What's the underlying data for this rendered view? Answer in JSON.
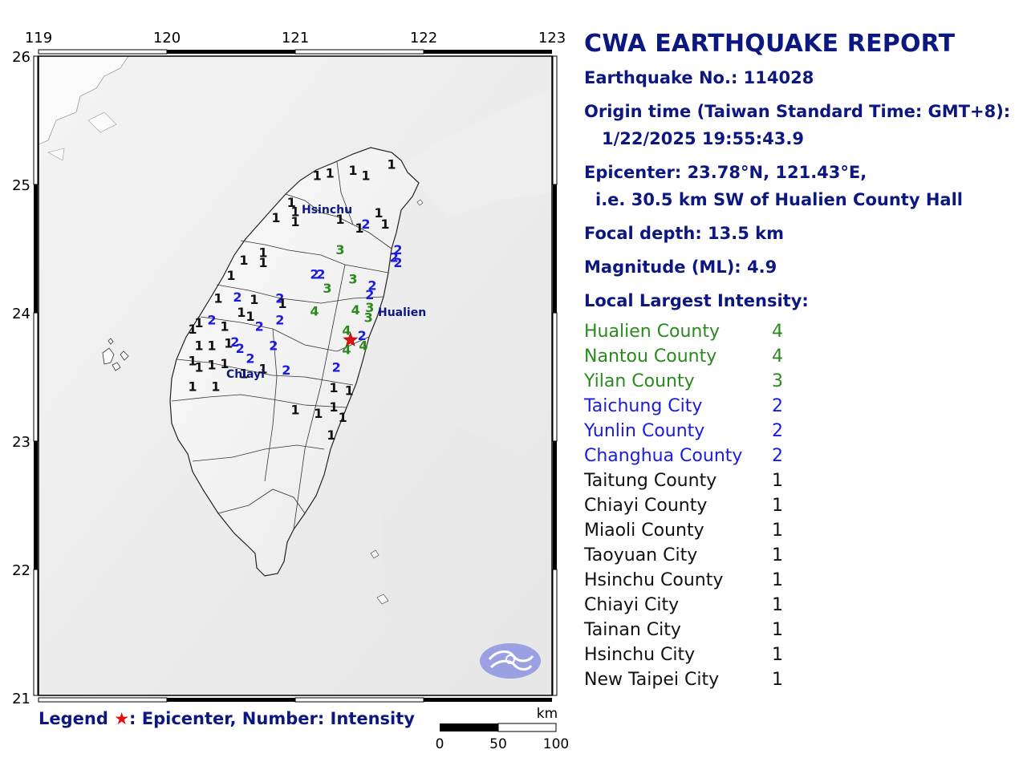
{
  "report": {
    "title": "CWA EARTHQUAKE REPORT",
    "earthquake_no": "Earthquake No.: 114028",
    "origin_label": "Origin time (Taiwan Standard Time: GMT+8):",
    "origin_time": "1/22/2025 19:55:43.9",
    "epicenter": "Epicenter: 23.78°N, 121.43°E,",
    "epicenter_desc": "i.e. 30.5 km SW of Hualien County Hall",
    "depth": "Focal depth: 13.5 km",
    "magnitude": "Magnitude (ML): 4.9",
    "intensity_heading": "Local Largest Intensity:",
    "intensities": [
      {
        "name": "Hualien County",
        "value": "4",
        "color": "#2a8a1e"
      },
      {
        "name": "Nantou County",
        "value": "4",
        "color": "#2a8a1e"
      },
      {
        "name": "Yilan County",
        "value": "3",
        "color": "#2a8a1e"
      },
      {
        "name": "Taichung City",
        "value": "2",
        "color": "#1a1ae0"
      },
      {
        "name": "Yunlin County",
        "value": "2",
        "color": "#1a1ae0"
      },
      {
        "name": "Changhua County",
        "value": "2",
        "color": "#1a1ae0"
      },
      {
        "name": "Taitung County",
        "value": "1",
        "color": "#111111"
      },
      {
        "name": "Chiayi County",
        "value": "1",
        "color": "#111111"
      },
      {
        "name": "Miaoli County",
        "value": "1",
        "color": "#111111"
      },
      {
        "name": "Taoyuan City",
        "value": "1",
        "color": "#111111"
      },
      {
        "name": "Hsinchu County",
        "value": "1",
        "color": "#111111"
      },
      {
        "name": "Chiayi City",
        "value": "1",
        "color": "#111111"
      },
      {
        "name": "Tainan City",
        "value": "1",
        "color": "#111111"
      },
      {
        "name": "Hsinchu City",
        "value": "1",
        "color": "#111111"
      },
      {
        "name": "New Taipei City",
        "value": "1",
        "color": "#111111"
      }
    ]
  },
  "map": {
    "lon_ticks": [
      "119",
      "120",
      "121",
      "122",
      "123"
    ],
    "lat_ticks": [
      "26",
      "25",
      "24",
      "23",
      "22",
      "21"
    ],
    "cities": [
      "Hsinchu",
      "Hualien",
      "Chiayi"
    ],
    "epicenter_icon": "red-star-icon",
    "logo_icon": "cwa-logo-icon",
    "scale_unit": "km",
    "scale_labels": [
      "0",
      "50",
      "100"
    ],
    "station_colors": {
      "1": "#111111",
      "2": "#1a1ae0",
      "3": "#2a8a1e",
      "4": "#2a8a1e"
    },
    "stations": [
      {
        "v": "1",
        "lon": 121.17,
        "lat": 25.03
      },
      {
        "v": "1",
        "lon": 121.27,
        "lat": 25.05
      },
      {
        "v": "1",
        "lon": 121.45,
        "lat": 25.07
      },
      {
        "v": "1",
        "lon": 121.55,
        "lat": 25.03
      },
      {
        "v": "1",
        "lon": 121.75,
        "lat": 25.12
      },
      {
        "v": "1",
        "lon": 120.97,
        "lat": 24.82
      },
      {
        "v": "1",
        "lon": 121.0,
        "lat": 24.75
      },
      {
        "v": "1",
        "lon": 120.85,
        "lat": 24.7
      },
      {
        "v": "1",
        "lon": 121.0,
        "lat": 24.67
      },
      {
        "v": "1",
        "lon": 121.35,
        "lat": 24.69
      },
      {
        "v": "1",
        "lon": 121.65,
        "lat": 24.74
      },
      {
        "v": "1",
        "lon": 121.7,
        "lat": 24.65
      },
      {
        "v": "1",
        "lon": 121.5,
        "lat": 24.62
      },
      {
        "v": "2",
        "lon": 121.55,
        "lat": 24.65
      },
      {
        "v": "1",
        "lon": 120.75,
        "lat": 24.43
      },
      {
        "v": "1",
        "lon": 120.6,
        "lat": 24.37
      },
      {
        "v": "1",
        "lon": 120.75,
        "lat": 24.35
      },
      {
        "v": "1",
        "lon": 120.5,
        "lat": 24.25
      },
      {
        "v": "3",
        "lon": 121.35,
        "lat": 24.45
      },
      {
        "v": "2",
        "lon": 121.8,
        "lat": 24.45
      },
      {
        "v": "2",
        "lon": 121.77,
        "lat": 24.39
      },
      {
        "v": "2",
        "lon": 121.8,
        "lat": 24.35
      },
      {
        "v": "2",
        "lon": 121.15,
        "lat": 24.26
      },
      {
        "v": "2",
        "lon": 121.2,
        "lat": 24.26
      },
      {
        "v": "3",
        "lon": 121.45,
        "lat": 24.22
      },
      {
        "v": "3",
        "lon": 121.25,
        "lat": 24.15
      },
      {
        "v": "2",
        "lon": 121.6,
        "lat": 24.17
      },
      {
        "v": "2",
        "lon": 121.58,
        "lat": 24.1
      },
      {
        "v": "1",
        "lon": 120.4,
        "lat": 24.07
      },
      {
        "v": "2",
        "lon": 120.55,
        "lat": 24.08
      },
      {
        "v": "1",
        "lon": 120.68,
        "lat": 24.06
      },
      {
        "v": "2",
        "lon": 120.88,
        "lat": 24.07
      },
      {
        "v": "1",
        "lon": 120.9,
        "lat": 24.03
      },
      {
        "v": "4",
        "lon": 121.15,
        "lat": 23.97
      },
      {
        "v": "4",
        "lon": 121.47,
        "lat": 23.98
      },
      {
        "v": "3",
        "lon": 121.58,
        "lat": 24.0
      },
      {
        "v": "3",
        "lon": 121.57,
        "lat": 23.92
      },
      {
        "v": "2",
        "lon": 120.35,
        "lat": 23.9
      },
      {
        "v": "1",
        "lon": 120.25,
        "lat": 23.88
      },
      {
        "v": "1",
        "lon": 120.45,
        "lat": 23.85
      },
      {
        "v": "1",
        "lon": 120.58,
        "lat": 23.96
      },
      {
        "v": "1",
        "lon": 120.65,
        "lat": 23.93
      },
      {
        "v": "2",
        "lon": 120.72,
        "lat": 23.85
      },
      {
        "v": "2",
        "lon": 120.88,
        "lat": 23.9
      },
      {
        "v": "1",
        "lon": 120.2,
        "lat": 23.83
      },
      {
        "v": "1",
        "lon": 120.25,
        "lat": 23.7
      },
      {
        "v": "1",
        "lon": 120.35,
        "lat": 23.7
      },
      {
        "v": "1",
        "lon": 120.48,
        "lat": 23.72
      },
      {
        "v": "2",
        "lon": 120.53,
        "lat": 23.73
      },
      {
        "v": "2",
        "lon": 120.57,
        "lat": 23.68
      },
      {
        "v": "2",
        "lon": 120.65,
        "lat": 23.6
      },
      {
        "v": "2",
        "lon": 120.83,
        "lat": 23.7
      },
      {
        "v": "4",
        "lon": 121.4,
        "lat": 23.82
      },
      {
        "v": "2",
        "lon": 121.52,
        "lat": 23.78
      },
      {
        "v": "4",
        "lon": 121.53,
        "lat": 23.7
      },
      {
        "v": "4",
        "lon": 121.4,
        "lat": 23.67
      },
      {
        "v": "1",
        "lon": 120.2,
        "lat": 23.58
      },
      {
        "v": "1",
        "lon": 120.25,
        "lat": 23.53
      },
      {
        "v": "1",
        "lon": 120.35,
        "lat": 23.55
      },
      {
        "v": "1",
        "lon": 120.45,
        "lat": 23.56
      },
      {
        "v": "1",
        "lon": 120.6,
        "lat": 23.48
      },
      {
        "v": "1",
        "lon": 120.75,
        "lat": 23.52
      },
      {
        "v": "2",
        "lon": 120.93,
        "lat": 23.51
      },
      {
        "v": "2",
        "lon": 121.32,
        "lat": 23.53
      },
      {
        "v": "1",
        "lon": 120.2,
        "lat": 23.38
      },
      {
        "v": "1",
        "lon": 120.38,
        "lat": 23.38
      },
      {
        "v": "1",
        "lon": 121.3,
        "lat": 23.37
      },
      {
        "v": "1",
        "lon": 121.42,
        "lat": 23.35
      },
      {
        "v": "1",
        "lon": 121.3,
        "lat": 23.22
      },
      {
        "v": "1",
        "lon": 121.0,
        "lat": 23.2
      },
      {
        "v": "1",
        "lon": 121.18,
        "lat": 23.17
      },
      {
        "v": "1",
        "lon": 121.37,
        "lat": 23.14
      },
      {
        "v": "1",
        "lon": 121.28,
        "lat": 23.0
      }
    ],
    "epicenter_lonlat": [
      121.43,
      23.78
    ]
  }
}
